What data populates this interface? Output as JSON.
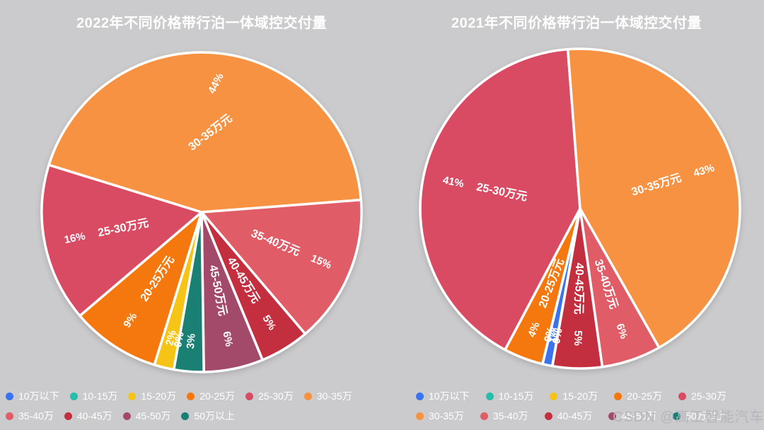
{
  "page": {
    "background": "#cbcbcd",
    "watermark": "CSDN @高工智能汽车"
  },
  "chart_data": [
    {
      "type": "pie",
      "title": "2022年不同价格带行泊一体域控交付量",
      "unit": "%",
      "start_angle_deg_clockwise_from_top": 190,
      "categories": [
        "10万以下",
        "10-15万",
        "15-20万",
        "20-25万",
        "25-30万",
        "30-35万",
        "35-40万",
        "40-45万",
        "45-50万",
        "50万以上"
      ],
      "values": [
        0,
        0,
        2,
        9,
        16,
        44,
        15,
        5,
        6,
        3
      ],
      "percent_labels": [
        "0%",
        "0%",
        "2%",
        "9%",
        "16%",
        "44%",
        "15%",
        "5%",
        "6%",
        "3%"
      ],
      "name_labels": [
        "",
        "",
        "",
        "20-25万元",
        "25-30万元",
        "30-35万元",
        "35-40万元",
        "40-45万元",
        "45-50万元",
        ""
      ],
      "colors": [
        "#3b72ef",
        "#22c0ab",
        "#f6c417",
        "#f4780e",
        "#d94a63",
        "#f79242",
        "#e05c66",
        "#c42f40",
        "#a34a6b",
        "#1a8073"
      ],
      "legend_rows": [
        [
          "10万以下",
          "10-15万",
          "15-20万",
          "20-25万",
          "25-30万",
          "30-35万"
        ],
        [
          "35-40万",
          "40-45万",
          "45-50万",
          "50万以上"
        ]
      ],
      "legend_position": "bottom"
    },
    {
      "type": "pie",
      "title": "2021年不同价格带行泊一体域控交付量",
      "unit": "%",
      "start_angle_deg_clockwise_from_top": 190,
      "categories": [
        "10万以下",
        "10-15万",
        "15-20万",
        "20-25万",
        "25-30万",
        "30-35万",
        "35-40万",
        "40-45万",
        "45-50万",
        "50万以上"
      ],
      "values": [
        1,
        0,
        0,
        4,
        41,
        43,
        6,
        5,
        0,
        0
      ],
      "percent_labels": [
        "1%",
        "0%",
        "0%",
        "4%",
        "41%",
        "43%",
        "6%",
        "5%",
        "0%",
        "0%"
      ],
      "name_labels": [
        "",
        "",
        "",
        "20-25万元",
        "25-30万元",
        "30-35万元",
        "35-40万元",
        "40-45万元",
        "",
        ""
      ],
      "colors": [
        "#3b72ef",
        "#22c0ab",
        "#f6c417",
        "#f4780e",
        "#d94a63",
        "#f79242",
        "#e05c66",
        "#c42f40",
        "#a34a6b",
        "#1a8073"
      ],
      "legend_rows": [
        [
          "10万以下",
          "10-15万",
          "15-20万",
          "20-25万",
          "25-30万"
        ],
        [
          "30-35万",
          "35-40万",
          "40-45万",
          "45-50万",
          "50万以上"
        ]
      ],
      "legend_position": "bottom"
    }
  ]
}
